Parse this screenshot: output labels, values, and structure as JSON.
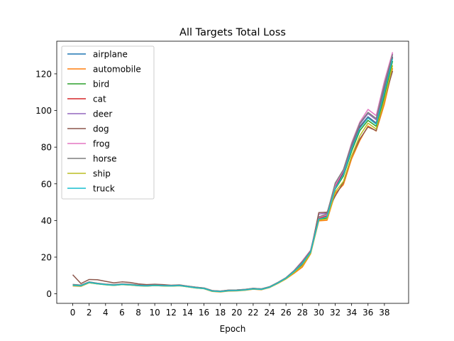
{
  "chart_data": {
    "type": "line",
    "title": "All Targets Total Loss",
    "xlabel": "Epoch",
    "ylabel": "",
    "xlim": [
      -1.95,
      40.95
    ],
    "ylim": [
      -5.2,
      137.8
    ],
    "x_ticks": [
      0,
      2,
      4,
      6,
      8,
      10,
      12,
      14,
      16,
      18,
      20,
      22,
      24,
      26,
      28,
      30,
      32,
      34,
      36,
      38
    ],
    "y_ticks": [
      0,
      20,
      40,
      60,
      80,
      100,
      120
    ],
    "grid": false,
    "legend_position": "upper-left",
    "x": [
      0,
      1,
      2,
      3,
      4,
      5,
      6,
      7,
      8,
      9,
      10,
      11,
      12,
      13,
      14,
      15,
      16,
      17,
      18,
      19,
      20,
      21,
      22,
      23,
      24,
      25,
      26,
      27,
      28,
      29,
      30,
      31,
      32,
      33,
      34,
      35,
      36,
      37,
      38,
      39
    ],
    "series": [
      {
        "name": "airplane",
        "color": "#1f77b4",
        "values": [
          5.0,
          4.6,
          6.3,
          5.6,
          5.1,
          4.8,
          5.2,
          5.0,
          4.6,
          4.4,
          4.7,
          4.5,
          4.4,
          4.6,
          4.0,
          3.4,
          3.0,
          1.6,
          1.3,
          1.8,
          1.9,
          2.2,
          2.8,
          2.5,
          3.7,
          6.0,
          8.6,
          12.4,
          17.0,
          23.0,
          40.9,
          42.2,
          58.6,
          66.4,
          80.1,
          91.3,
          96.6,
          93.2,
          111.5,
          129.4
        ]
      },
      {
        "name": "automobile",
        "color": "#ff7f0e",
        "values": [
          4.3,
          4.1,
          6.0,
          5.4,
          5.0,
          4.6,
          5.0,
          4.8,
          4.4,
          4.2,
          4.5,
          4.3,
          4.2,
          4.4,
          3.8,
          3.2,
          2.8,
          1.3,
          1.0,
          1.5,
          1.6,
          1.9,
          2.5,
          2.2,
          3.4,
          5.6,
          8.1,
          11.2,
          14.6,
          21.8,
          39.8,
          40.1,
          54.7,
          59.5,
          73.6,
          83.6,
          91.6,
          88.8,
          103.5,
          123.1
        ]
      },
      {
        "name": "bird",
        "color": "#2ca02c",
        "values": [
          4.6,
          4.3,
          6.1,
          5.5,
          5.0,
          4.7,
          5.1,
          4.9,
          4.5,
          4.3,
          4.6,
          4.4,
          4.3,
          4.5,
          3.9,
          3.3,
          2.9,
          1.5,
          1.2,
          1.7,
          1.8,
          2.1,
          2.7,
          2.4,
          3.6,
          5.9,
          8.4,
          12.0,
          16.3,
          22.6,
          40.5,
          41.3,
          57.1,
          64.2,
          77.8,
          89.0,
          94.6,
          91.4,
          108.2,
          127.0
        ]
      },
      {
        "name": "cat",
        "color": "#d62728",
        "values": [
          4.9,
          4.5,
          6.2,
          5.6,
          5.1,
          4.8,
          5.2,
          5.0,
          4.6,
          4.4,
          4.7,
          4.5,
          4.4,
          4.6,
          4.0,
          3.4,
          3.0,
          1.6,
          1.3,
          1.8,
          1.9,
          2.2,
          2.8,
          2.5,
          3.7,
          6.0,
          8.5,
          12.3,
          16.8,
          22.9,
          41.2,
          42.5,
          58.0,
          65.6,
          79.4,
          90.7,
          96.1,
          92.8,
          110.6,
          128.7
        ]
      },
      {
        "name": "deer",
        "color": "#9467bd",
        "values": [
          5.0,
          4.7,
          6.4,
          5.7,
          5.2,
          4.9,
          5.3,
          5.1,
          4.7,
          4.5,
          4.8,
          4.6,
          4.5,
          4.7,
          4.1,
          3.5,
          3.1,
          1.7,
          1.4,
          1.9,
          2.0,
          2.3,
          2.9,
          2.6,
          3.8,
          6.1,
          8.7,
          12.6,
          17.4,
          23.3,
          43.5,
          44.0,
          59.4,
          67.0,
          81.0,
          92.5,
          98.3,
          94.9,
          113.4,
          131.0
        ]
      },
      {
        "name": "dog",
        "color": "#8c564b",
        "values": [
          10.4,
          5.6,
          7.8,
          7.7,
          6.8,
          6.0,
          6.5,
          6.2,
          5.4,
          5.0,
          5.2,
          5.0,
          4.7,
          4.9,
          4.2,
          3.6,
          3.2,
          1.8,
          1.5,
          2.0,
          2.1,
          2.4,
          3.0,
          2.7,
          3.8,
          6.0,
          8.5,
          12.1,
          16.0,
          22.5,
          44.3,
          44.5,
          53.3,
          60.8,
          75.0,
          84.5,
          91.0,
          89.0,
          106.0,
          121.6
        ]
      },
      {
        "name": "frog",
        "color": "#e377c2",
        "values": [
          4.8,
          4.5,
          6.3,
          5.6,
          5.1,
          4.8,
          5.2,
          5.0,
          4.6,
          4.4,
          4.7,
          4.5,
          4.4,
          4.6,
          4.0,
          3.4,
          3.0,
          1.6,
          1.3,
          1.8,
          1.9,
          2.2,
          2.8,
          2.5,
          3.7,
          6.1,
          8.8,
          12.8,
          18.0,
          23.8,
          41.6,
          43.2,
          59.0,
          67.5,
          82.3,
          93.7,
          100.6,
          97.2,
          116.0,
          131.8
        ]
      },
      {
        "name": "horse",
        "color": "#7f7f7f",
        "values": [
          5.1,
          4.8,
          6.5,
          5.8,
          5.3,
          5.0,
          5.4,
          5.2,
          4.8,
          4.6,
          4.9,
          4.7,
          4.6,
          4.8,
          4.2,
          3.6,
          3.2,
          1.8,
          1.5,
          2.0,
          2.1,
          2.4,
          3.0,
          2.7,
          3.9,
          6.2,
          8.8,
          12.7,
          17.6,
          23.5,
          42.0,
          43.6,
          60.4,
          67.8,
          81.5,
          93.0,
          99.0,
          95.6,
          114.2,
          130.6
        ]
      },
      {
        "name": "ship",
        "color": "#bcbd22",
        "values": [
          4.5,
          4.2,
          6.0,
          5.4,
          4.9,
          4.6,
          5.0,
          4.8,
          4.4,
          4.2,
          4.5,
          4.3,
          4.2,
          4.4,
          3.8,
          3.2,
          2.8,
          1.4,
          1.1,
          1.6,
          1.7,
          2.0,
          2.6,
          2.3,
          3.5,
          5.7,
          8.2,
          11.6,
          15.4,
          22.0,
          40.3,
          40.8,
          55.6,
          61.3,
          75.2,
          86.2,
          93.1,
          89.9,
          105.6,
          124.6
        ]
      },
      {
        "name": "truck",
        "color": "#17becf",
        "values": [
          4.7,
          4.4,
          6.2,
          5.5,
          5.0,
          4.7,
          5.1,
          4.9,
          4.5,
          4.3,
          4.6,
          4.4,
          4.3,
          4.5,
          3.9,
          3.3,
          2.9,
          1.5,
          1.2,
          1.7,
          1.8,
          2.1,
          2.7,
          2.4,
          3.6,
          5.9,
          8.5,
          12.2,
          16.6,
          22.7,
          40.7,
          42.0,
          57.5,
          65.0,
          79.0,
          90.2,
          95.9,
          92.5,
          110.0,
          128.4
        ]
      }
    ]
  }
}
